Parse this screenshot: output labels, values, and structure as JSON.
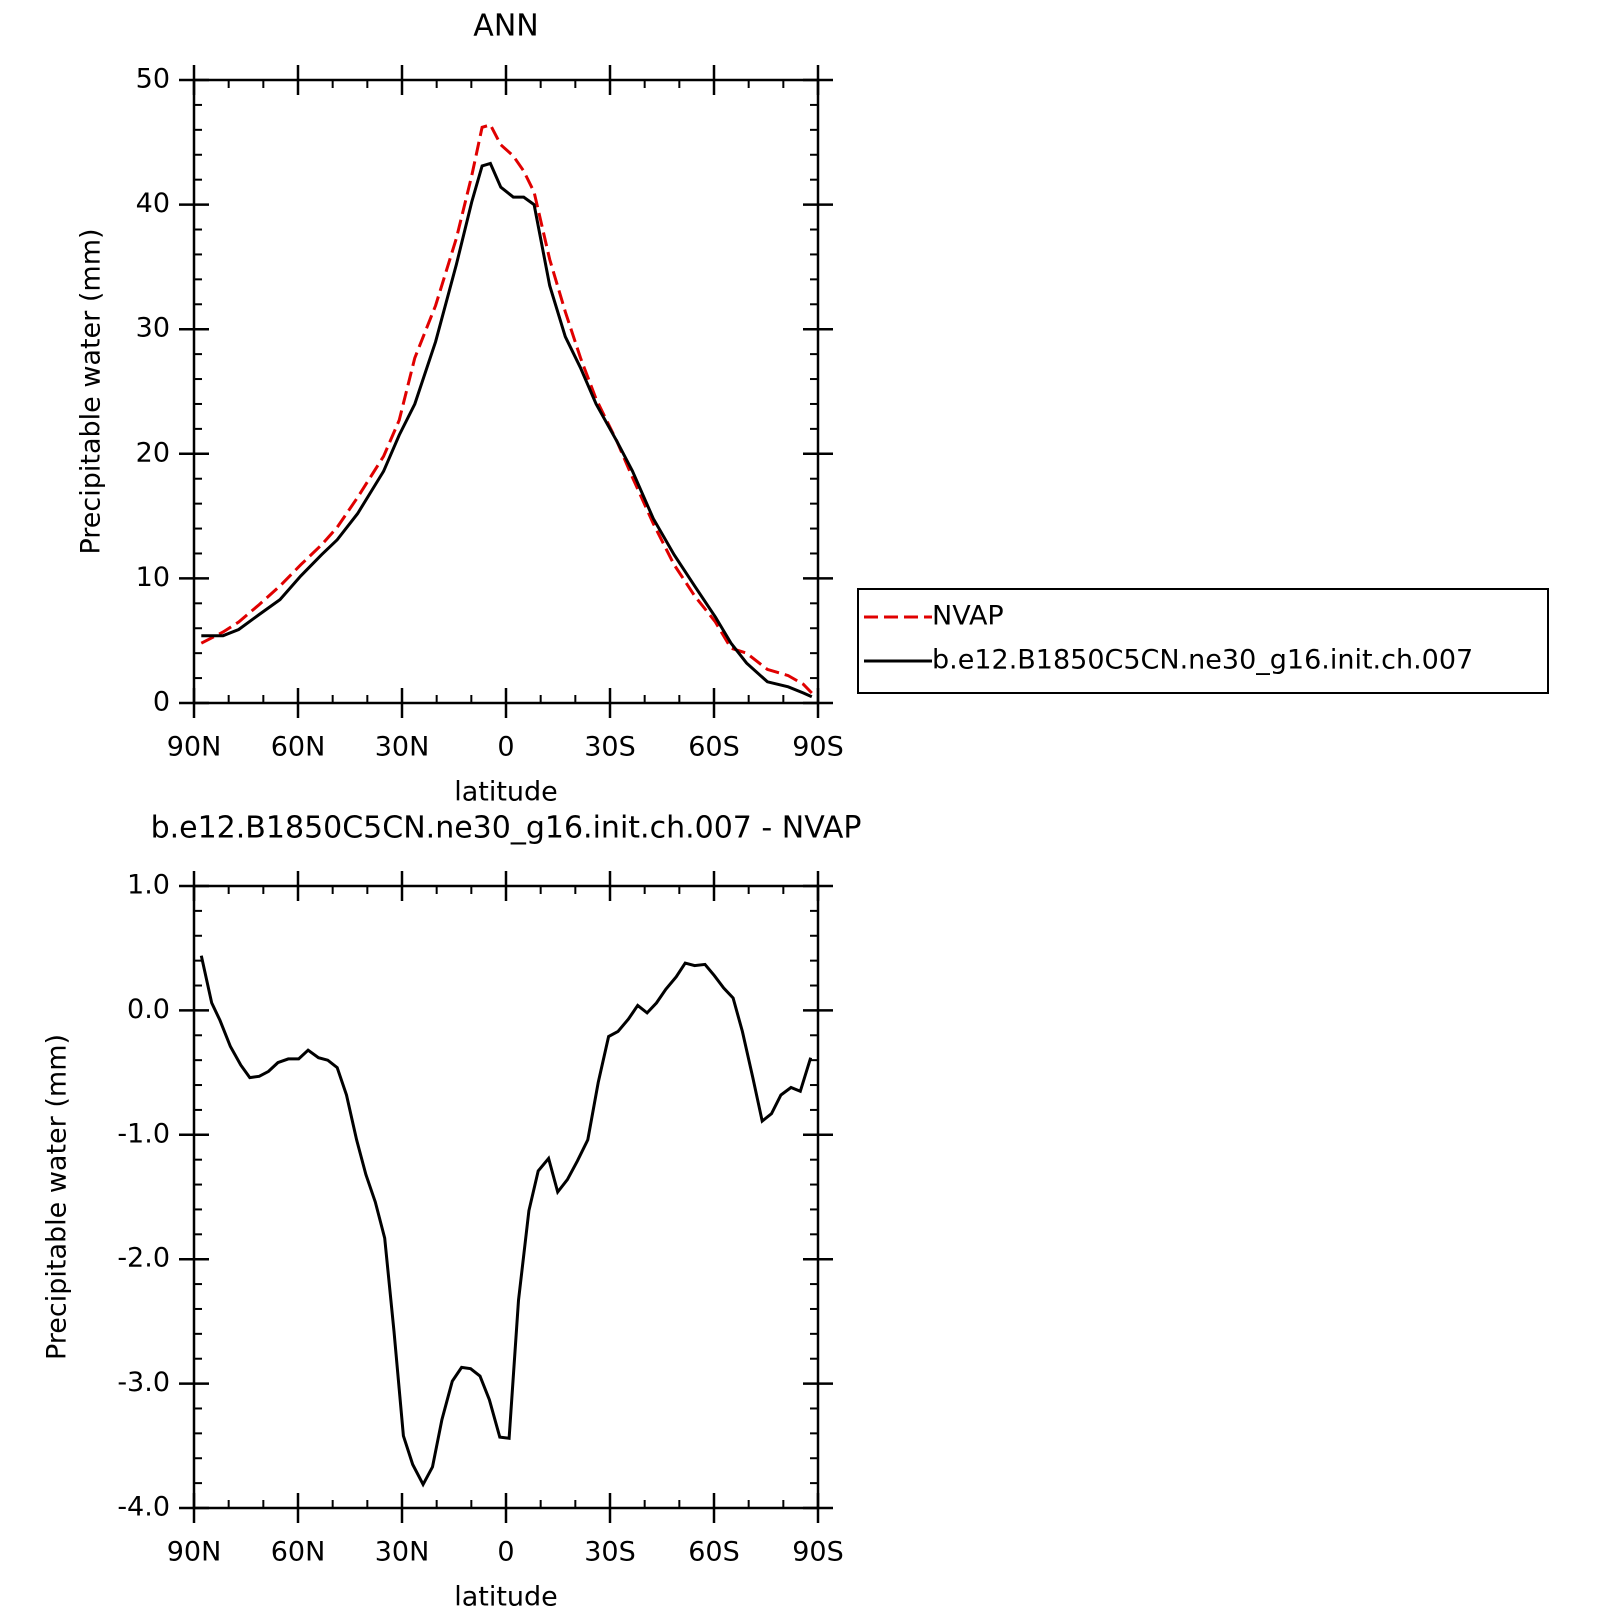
{
  "chart_data": [
    {
      "type": "line",
      "title": "ANN",
      "xlabel": "latitude",
      "ylabel": "Precipitable water (mm)",
      "x": [
        87.9,
        81.6,
        77.1,
        71.2,
        65.2,
        59.2,
        53.2,
        48.7,
        42.8,
        35.3,
        30.8,
        26.3,
        20.3,
        14.3,
        9.9,
        6.9,
        4.5,
        1.5,
        -2.1,
        -5.1,
        -8.1,
        -12.6,
        -17.1,
        -21.5,
        -26.0,
        -32.0,
        -36.5,
        -42.5,
        -48.5,
        -54.4,
        -60.4,
        -64.9,
        -69.4,
        -75.4,
        -81.4,
        -85.8,
        -88.2
      ],
      "series": [
        {
          "name": "NVAP",
          "color": "#e00000",
          "line_style": "dashed",
          "values": [
            4.8,
            5.7,
            6.5,
            7.9,
            9.4,
            11.1,
            12.7,
            14.1,
            16.5,
            19.8,
            22.7,
            27.7,
            31.9,
            37.3,
            42.3,
            46.2,
            46.4,
            44.8,
            43.9,
            42.7,
            41.0,
            35.6,
            31.4,
            27.7,
            24.4,
            21.0,
            18.1,
            14.4,
            11.1,
            8.6,
            6.5,
            4.4,
            4.0,
            2.7,
            2.2,
            1.5,
            0.8
          ]
        },
        {
          "name": "b.e12.B1850C5CN.ne30_g16.init.ch.007",
          "color": "#000000",
          "line_style": "solid",
          "values": [
            5.4,
            5.4,
            5.9,
            7.1,
            8.3,
            10.2,
            11.9,
            13.1,
            15.2,
            18.6,
            21.5,
            24.0,
            29.0,
            35.2,
            40.2,
            43.1,
            43.3,
            41.4,
            40.6,
            40.6,
            40.0,
            33.5,
            29.4,
            26.9,
            24.0,
            21.0,
            18.6,
            14.8,
            11.9,
            9.4,
            6.9,
            4.8,
            3.2,
            1.7,
            1.3,
            0.8,
            0.5
          ]
        }
      ],
      "xlim": [
        90,
        -90
      ],
      "xticks": [
        {
          "value": 90,
          "label": "90N"
        },
        {
          "value": 60,
          "label": "60N"
        },
        {
          "value": 30,
          "label": "30N"
        },
        0,
        {
          "value": -30,
          "label": "30S"
        },
        {
          "value": -60,
          "label": "60S"
        },
        {
          "value": -90,
          "label": "90S"
        }
      ],
      "minor_xticks": [
        80,
        70,
        50,
        40,
        20,
        10,
        -10,
        -20,
        -40,
        -50,
        -70,
        -80
      ],
      "ylim": [
        0,
        50
      ],
      "yticks": [
        0,
        10,
        20,
        30,
        40,
        50
      ],
      "minor_yticks": [
        2,
        4,
        6,
        8,
        12,
        14,
        16,
        18,
        22,
        24,
        26,
        28,
        32,
        34,
        36,
        38,
        42,
        44,
        46,
        48
      ],
      "legend": "outside-right",
      "grid": false
    },
    {
      "type": "line",
      "title": "b.e12.B1850C5CN.ne30_g16.init.ch.007 - NVAP",
      "xlabel": "latitude",
      "ylabel": "Precipitable water (mm)",
      "x": [
        87.9,
        84.9,
        82.5,
        79.5,
        76.5,
        73.9,
        71.2,
        68.5,
        65.8,
        62.8,
        59.8,
        57.1,
        54.1,
        51.4,
        48.7,
        46.0,
        43.1,
        40.4,
        37.7,
        35.0,
        32.3,
        29.6,
        26.9,
        23.9,
        21.2,
        18.5,
        15.5,
        12.8,
        10.2,
        7.5,
        4.8,
        1.8,
        -0.9,
        -3.6,
        -6.6,
        -9.3,
        -12.3,
        -14.9,
        -17.7,
        -20.6,
        -23.6,
        -26.6,
        -29.6,
        -32.3,
        -35.3,
        -38.0,
        -40.7,
        -43.4,
        -46.1,
        -49.1,
        -51.7,
        -54.4,
        -57.4,
        -60.1,
        -62.8,
        -65.5,
        -68.2,
        -71.2,
        -73.9,
        -76.6,
        -79.3,
        -82.2,
        -84.9,
        -87.9
      ],
      "series": [
        {
          "name": null,
          "color": "#000000",
          "line_style": "solid",
          "values": [
            0.44,
            0.06,
            -0.08,
            -0.29,
            -0.44,
            -0.54,
            -0.53,
            -0.49,
            -0.42,
            -0.39,
            -0.39,
            -0.32,
            -0.38,
            -0.4,
            -0.46,
            -0.68,
            -1.04,
            -1.32,
            -1.54,
            -1.83,
            -2.58,
            -3.42,
            -3.65,
            -3.81,
            -3.67,
            -3.29,
            -2.98,
            -2.87,
            -2.88,
            -2.94,
            -3.13,
            -3.43,
            -3.44,
            -2.33,
            -1.61,
            -1.29,
            -1.19,
            -1.46,
            -1.36,
            -1.21,
            -1.04,
            -0.58,
            -0.21,
            -0.17,
            -0.07,
            0.04,
            -0.02,
            0.06,
            0.17,
            0.27,
            0.38,
            0.36,
            0.37,
            0.28,
            0.18,
            0.1,
            -0.17,
            -0.54,
            -0.89,
            -0.83,
            -0.68,
            -0.62,
            -0.65,
            -0.38
          ]
        }
      ],
      "xlim": [
        90,
        -90
      ],
      "xticks": [
        {
          "value": 90,
          "label": "90N"
        },
        {
          "value": 60,
          "label": "60N"
        },
        {
          "value": 30,
          "label": "30N"
        },
        0,
        {
          "value": -30,
          "label": "30S"
        },
        {
          "value": -60,
          "label": "60S"
        },
        {
          "value": -90,
          "label": "90S"
        }
      ],
      "minor_xticks": [
        80,
        70,
        50,
        40,
        20,
        10,
        -10,
        -20,
        -40,
        -50,
        -70,
        -80
      ],
      "ylim": [
        -4,
        1
      ],
      "yticks": [
        {
          "value": 1,
          "label": "1.0"
        },
        {
          "value": 0,
          "label": "0.0"
        },
        {
          "value": -1,
          "label": "-1.0"
        },
        {
          "value": -2,
          "label": "-2.0"
        },
        {
          "value": -3,
          "label": "-3.0"
        },
        {
          "value": -4,
          "label": "-4.0"
        }
      ],
      "minor_yticks": [
        0.8,
        0.6,
        0.4,
        0.2,
        -0.2,
        -0.4,
        -0.6,
        -0.8,
        -1.2,
        -1.4,
        -1.6,
        -1.8,
        -2.2,
        -2.4,
        -2.6,
        -2.8,
        -3.2,
        -3.4,
        -3.6,
        -3.8
      ],
      "grid": false
    }
  ]
}
